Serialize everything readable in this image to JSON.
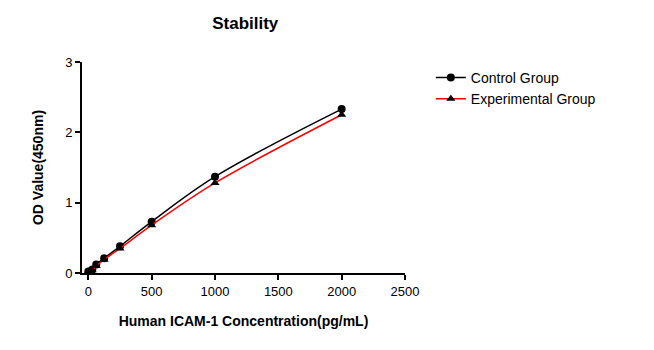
{
  "chart_data": {
    "type": "scatter",
    "title": "Stability",
    "x_label": "Human ICAM-1 Concentration(pg/mL)",
    "y_label": "OD Value(450nm)",
    "x": [
      0,
      31.25,
      62.5,
      125,
      250,
      500,
      1000,
      2000
    ],
    "series": [
      {
        "name": "Control Group",
        "color": "#000000",
        "marker": "circle",
        "line_style": "solid",
        "values": [
          0.02,
          0.05,
          0.12,
          0.21,
          0.38,
          0.73,
          1.37,
          2.33
        ]
      },
      {
        "name": "Experimental Group",
        "color": "#ff0000",
        "marker": "triangle-up",
        "line_style": "solid",
        "values": [
          0.02,
          0.04,
          0.1,
          0.19,
          0.35,
          0.68,
          1.28,
          2.25
        ]
      }
    ],
    "xlim": [
      -50,
      2500
    ],
    "xticks": [
      0,
      500,
      1000,
      1500,
      2000,
      2500
    ],
    "ylim": [
      0,
      3
    ],
    "yticks": [
      0,
      1,
      2,
      3
    ],
    "grid": false,
    "legend": "right"
  }
}
